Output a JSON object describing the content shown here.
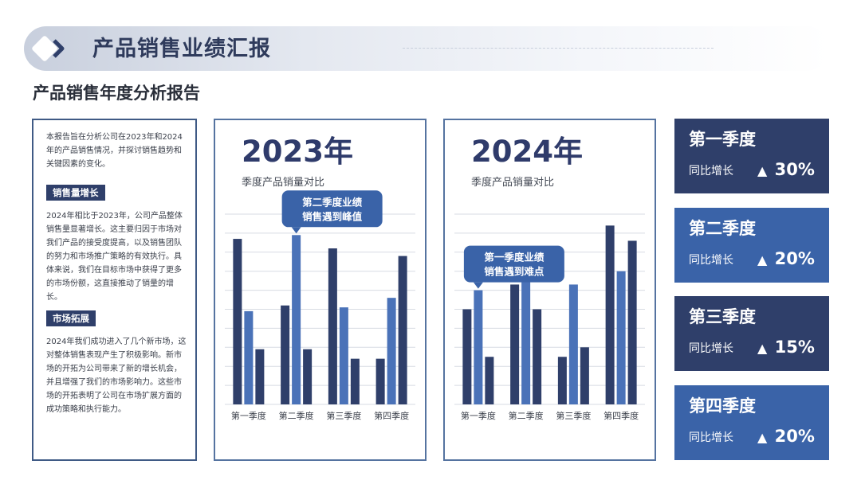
{
  "header": {
    "title": "产品销售业绩汇报",
    "subtitle": "产品销售年度分析报告",
    "logo": "diamond-chevron-icon"
  },
  "text_panel": {
    "intro": "本报告旨在分析公司在2023年和2024年的产品销售情况，并探讨销售趋势和关键因素的变化。",
    "section1_title": "销售量增长",
    "section1_body": "2024年相比于2023年，公司产品整体销售量显著增长。这主要归因于市场对我们产品的接受度提高，以及销售团队的努力和市场推广策略的有效执行。具体来说，我们在目标市场中获得了更多的市场份额，这直接推动了销量的增长。",
    "section2_title": "市场拓展",
    "section2_body": "2024年我们成功进入了几个新市场，这对整体销售表现产生了积极影响。新市场的开拓为公司带来了新的增长机会，并且增强了我们的市场影响力。这些市场的开拓表明了公司在市场扩展方面的成功策略和执行能力。"
  },
  "cards": [
    {
      "name": "第一季度",
      "label": "同比增长",
      "value": "30%"
    },
    {
      "name": "第二季度",
      "label": "同比增长",
      "value": "20%"
    },
    {
      "name": "第三季度",
      "label": "同比增长",
      "value": "15%"
    },
    {
      "name": "第四季度",
      "label": "同比增长",
      "value": "20%"
    }
  ],
  "colors": {
    "dark_navy": "#2f3f6a",
    "mid_blue": "#3a63a8",
    "light_blue": "#4a72b8"
  },
  "chart_data": [
    {
      "type": "bar",
      "title": "2023年",
      "subtitle": "季度产品销量对比",
      "categories": [
        "第一季度",
        "第二季度",
        "第三季度",
        "第四季度"
      ],
      "series": [
        {
          "values": [
            87,
            52,
            82,
            24
          ]
        },
        {
          "values": [
            49,
            89,
            51,
            56
          ]
        },
        {
          "values": [
            29,
            29,
            24,
            78
          ]
        }
      ],
      "ylim": [
        0,
        100
      ],
      "grid": true,
      "annotation": {
        "line1": "第二季度业绩",
        "line2": "销售遇到峰值",
        "category": "第二季度"
      }
    },
    {
      "type": "bar",
      "title": "2024年",
      "subtitle": "季度产品销量对比",
      "categories": [
        "第一季度",
        "第二季度",
        "第三季度",
        "第四季度"
      ],
      "series": [
        {
          "values": [
            50,
            63,
            25,
            94
          ]
        },
        {
          "values": [
            60,
            70,
            63,
            70
          ]
        },
        {
          "values": [
            25,
            50,
            30,
            86
          ]
        }
      ],
      "ylim": [
        0,
        100
      ],
      "grid": true,
      "annotation": {
        "line1": "第一季度业绩",
        "line2": "销售遇到难点",
        "category": "第一季度"
      }
    }
  ]
}
